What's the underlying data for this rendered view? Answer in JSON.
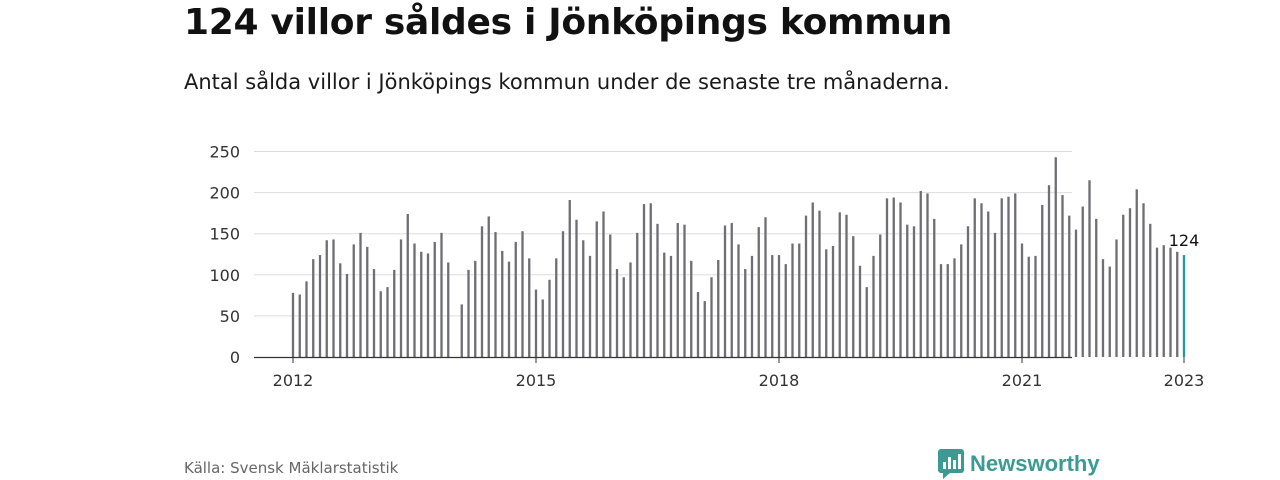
{
  "title": "124 villor såldes i Jönköpings kommun",
  "subtitle": "Antal sålda villor i Jönköpings kommun under de senaste tre månaderna.",
  "source": "Källa: Svensk Mäklarstatistik",
  "brand": {
    "name": "Newsworthy",
    "icon": "newsworthy-logo-icon",
    "color": "#3b9b92"
  },
  "colors": {
    "bar": "#6e6e73",
    "highlight": "#1b9e98",
    "grid": "#dddddd",
    "axis": "#333333"
  },
  "chart_data": {
    "type": "bar",
    "title": "",
    "xlabel": "",
    "ylabel": "",
    "ylim": [
      0,
      260
    ],
    "yticks": [
      0,
      50,
      100,
      150,
      200,
      250
    ],
    "x_start": "2012-01",
    "x_end": "2023-01",
    "xticks": [
      "2012",
      "2015",
      "2018",
      "2021",
      "2023"
    ],
    "annotation": {
      "label": "124",
      "category": "2023-01"
    },
    "grid": true,
    "categories": [
      "2012-01",
      "2012-02",
      "2012-03",
      "2012-04",
      "2012-05",
      "2012-06",
      "2012-07",
      "2012-08",
      "2012-09",
      "2012-10",
      "2012-11",
      "2012-12",
      "2013-01",
      "2013-02",
      "2013-03",
      "2013-04",
      "2013-05",
      "2013-06",
      "2013-07",
      "2013-08",
      "2013-09",
      "2013-10",
      "2013-11",
      "2013-12",
      "2014-01",
      "2014-02",
      "2014-03",
      "2014-04",
      "2014-05",
      "2014-06",
      "2014-07",
      "2014-08",
      "2014-09",
      "2014-10",
      "2014-11",
      "2014-12",
      "2015-01",
      "2015-02",
      "2015-03",
      "2015-04",
      "2015-05",
      "2015-06",
      "2015-07",
      "2015-08",
      "2015-09",
      "2015-10",
      "2015-11",
      "2015-12",
      "2016-01",
      "2016-02",
      "2016-03",
      "2016-04",
      "2016-05",
      "2016-06",
      "2016-07",
      "2016-08",
      "2016-09",
      "2016-10",
      "2016-11",
      "2016-12",
      "2017-01",
      "2017-02",
      "2017-03",
      "2017-04",
      "2017-05",
      "2017-06",
      "2017-07",
      "2017-08",
      "2017-09",
      "2017-10",
      "2017-11",
      "2017-12",
      "2018-01",
      "2018-02",
      "2018-03",
      "2018-04",
      "2018-05",
      "2018-06",
      "2018-07",
      "2018-08",
      "2018-09",
      "2018-10",
      "2018-11",
      "2018-12",
      "2019-01",
      "2019-02",
      "2019-03",
      "2019-04",
      "2019-05",
      "2019-06",
      "2019-07",
      "2019-08",
      "2019-09",
      "2019-10",
      "2019-11",
      "2019-12",
      "2020-01",
      "2020-02",
      "2020-03",
      "2020-04",
      "2020-05",
      "2020-06",
      "2020-07",
      "2020-08",
      "2020-09",
      "2020-10",
      "2020-11",
      "2020-12",
      "2021-01",
      "2021-02",
      "2021-03",
      "2021-04",
      "2021-05",
      "2021-06",
      "2021-07",
      "2021-08",
      "2021-09",
      "2021-10",
      "2021-11",
      "2021-12",
      "2022-01",
      "2022-02",
      "2022-03",
      "2022-04",
      "2022-05",
      "2022-06",
      "2022-07",
      "2022-08",
      "2022-09",
      "2022-10",
      "2022-11",
      "2022-12",
      "2023-01"
    ],
    "values": [
      78,
      76,
      92,
      119,
      124,
      142,
      143,
      114,
      101,
      137,
      151,
      134,
      107,
      80,
      85,
      106,
      143,
      174,
      138,
      128,
      126,
      140,
      151,
      115,
      null,
      64,
      106,
      117,
      159,
      171,
      152,
      129,
      116,
      140,
      153,
      120,
      82,
      70,
      94,
      120,
      153,
      191,
      167,
      142,
      123,
      165,
      177,
      149,
      107,
      97,
      115,
      151,
      186,
      187,
      162,
      127,
      123,
      163,
      161,
      117,
      79,
      68,
      97,
      118,
      160,
      163,
      137,
      107,
      123,
      158,
      170,
      124,
      124,
      113,
      138,
      138,
      172,
      188,
      178,
      131,
      135,
      176,
      173,
      147,
      111,
      85,
      123,
      149,
      193,
      194,
      188,
      161,
      159,
      202,
      199,
      168,
      113,
      113,
      120,
      137,
      159,
      193,
      187,
      177,
      151,
      193,
      195,
      199,
      138,
      122,
      123,
      185,
      209,
      243,
      197,
      172,
      155,
      183,
      215,
      168,
      119,
      110,
      143,
      173,
      181,
      204,
      187,
      162,
      133,
      136,
      133,
      128,
      124
    ]
  }
}
